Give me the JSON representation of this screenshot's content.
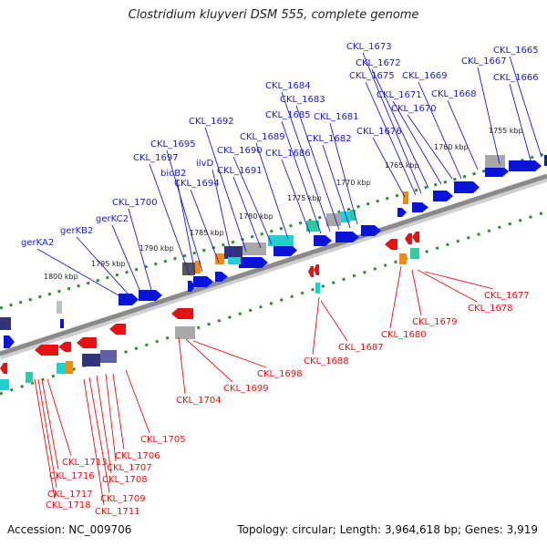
{
  "title": "Clostridium kluyveri DSM 555, complete genome",
  "accession": "Accession: NC_009706",
  "topology": "Topology: circular; Length: 3,964,618 bp; Genes: 3,919",
  "colors": {
    "forward_label": "#1a1ad8",
    "reverse_label": "#e81010",
    "forward_cds": "#0a14d8",
    "reverse_cds": "#e81010",
    "backbone": "#8a8a8a",
    "tick_dots": "#2e8b2e",
    "cyan": "#22d0d0",
    "teal": "#30c9a0",
    "orange": "#f08a10",
    "grey": "#a8a8a8",
    "navy": "#33337a"
  },
  "ticks": [
    {
      "label": "1755 kbp"
    },
    {
      "label": "1760 kbp"
    },
    {
      "label": "1765 kbp"
    },
    {
      "label": "1770 kbp"
    },
    {
      "label": "1775 kbp"
    },
    {
      "label": "1780 kbp"
    },
    {
      "label": "1785 kbp"
    },
    {
      "label": "1790 kbp"
    },
    {
      "label": "1795 kbp"
    },
    {
      "label": "1800 kbp"
    }
  ],
  "forward_genes": [
    {
      "label": "CKL_1665"
    },
    {
      "label": "CKL_1666"
    },
    {
      "label": "CKL_1667"
    },
    {
      "label": "CKL_1668"
    },
    {
      "label": "CKL_1669"
    },
    {
      "label": "CKL_1670"
    },
    {
      "label": "CKL_1671"
    },
    {
      "label": "CKL_1672"
    },
    {
      "label": "CKL_1673"
    },
    {
      "label": "CKL_1675"
    },
    {
      "label": "CKL_1676"
    },
    {
      "label": "CKL_1681"
    },
    {
      "label": "CKL_1682"
    },
    {
      "label": "CKL_1683"
    },
    {
      "label": "CKL_1684"
    },
    {
      "label": "CKL_1685"
    },
    {
      "label": "CKL_1686"
    },
    {
      "label": "CKL_1689"
    },
    {
      "label": "CKL_1690"
    },
    {
      "label": "CKL_1691"
    },
    {
      "label": "CKL_1692"
    },
    {
      "label": "ilvD"
    },
    {
      "label": "CKL_1694"
    },
    {
      "label": "CKL_1695"
    },
    {
      "label": "bioB2"
    },
    {
      "label": "CKL_1697"
    },
    {
      "label": "CKL_1700"
    },
    {
      "label": "gerKC2"
    },
    {
      "label": "gerKB2"
    },
    {
      "label": "gerKA2"
    }
  ],
  "reverse_genes": [
    {
      "label": "CKL_1677"
    },
    {
      "label": "CKL_1678"
    },
    {
      "label": "CKL_1679"
    },
    {
      "label": "CKL_1680"
    },
    {
      "label": "CKL_1687"
    },
    {
      "label": "CKL_1688"
    },
    {
      "label": "CKL_1698"
    },
    {
      "label": "CKL_1699"
    },
    {
      "label": "CKL_1704"
    },
    {
      "label": "CKL_1705"
    },
    {
      "label": "CKL_1706"
    },
    {
      "label": "CKL_1707"
    },
    {
      "label": "CKL_1708"
    },
    {
      "label": "CKL_1709"
    },
    {
      "label": "CKL_1711"
    },
    {
      "label": "CKL_1713"
    },
    {
      "label": "CKL_1716"
    },
    {
      "label": "CKL_1717"
    },
    {
      "label": "CKL_1718"
    }
  ]
}
